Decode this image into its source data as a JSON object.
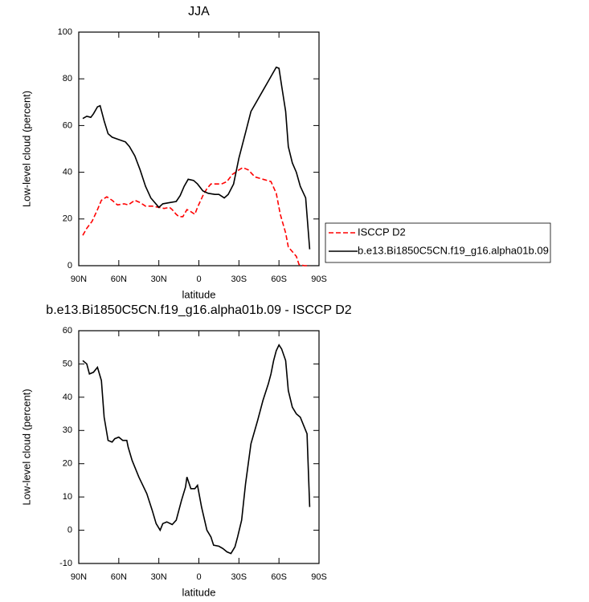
{
  "chart_data": [
    {
      "type": "line",
      "title": "JJA",
      "xlabel": "latitude",
      "ylabel": "Low-level cloud (percent)",
      "xlim": [
        90,
        -90
      ],
      "xticks": [
        {
          "value": 90,
          "label": "90N"
        },
        {
          "value": 60,
          "label": "60N"
        },
        {
          "value": 30,
          "label": "30N"
        },
        0,
        {
          "value": -30,
          "label": "30S"
        },
        {
          "value": -60,
          "label": "60S"
        },
        {
          "value": -90,
          "label": "90S"
        }
      ],
      "ylim": [
        0,
        100
      ],
      "yticks": [
        0,
        20,
        40,
        60,
        80,
        100
      ],
      "legend": "right",
      "series": [
        {
          "name": "ISCCP D2",
          "color": "#ff0000",
          "dash": true,
          "x": [
            87,
            84,
            80,
            76,
            73,
            69,
            65,
            61,
            56,
            53,
            48,
            44,
            40,
            35,
            30,
            26,
            22,
            20,
            17,
            15,
            12,
            9,
            7,
            3,
            1,
            -3,
            -6,
            -9,
            -17,
            -21,
            -25,
            -30,
            -33,
            -37,
            -42,
            -48,
            -54,
            -58,
            -61,
            -65,
            -67,
            -70,
            -73,
            -75,
            -79,
            -83
          ],
          "values": [
            13,
            16,
            19,
            24,
            28,
            29.5,
            28,
            26,
            26.5,
            26,
            28,
            27,
            25.5,
            25.5,
            25,
            24.5,
            25,
            24,
            22,
            21,
            21,
            24,
            23.5,
            22,
            25,
            30,
            33,
            35,
            35,
            36,
            39,
            41,
            42,
            41,
            38,
            37,
            36,
            31,
            22,
            14,
            8,
            6,
            4,
            0.5,
            0,
            0
          ]
        },
        {
          "name": "b.e13.Bi1850C5CN.f19_g16.alpha01b.09",
          "color": "#000000",
          "dash": false,
          "x": [
            87,
            84,
            81,
            79,
            76,
            74,
            71,
            68,
            65,
            60,
            55,
            52,
            48,
            44,
            40,
            36,
            30,
            27,
            22,
            17,
            14,
            11,
            8,
            4,
            1,
            -3,
            -7,
            -12,
            -15,
            -19,
            -22,
            -26,
            -30,
            -35,
            -39,
            -44,
            -48,
            -52,
            -56,
            -58,
            -60,
            -62,
            -65,
            -67,
            -70,
            -73,
            -76,
            -80,
            -83
          ],
          "values": [
            63,
            64,
            63.5,
            65,
            68,
            68.5,
            62,
            56.5,
            55,
            54,
            53,
            51,
            47,
            41,
            34,
            29,
            25,
            26.5,
            27,
            27.5,
            30,
            34,
            37,
            36.5,
            35,
            32,
            31,
            30.5,
            30.5,
            29,
            30.5,
            35,
            46,
            57,
            66,
            71,
            75,
            79,
            83,
            85,
            84.5,
            77,
            66,
            51,
            44,
            40,
            34,
            29,
            7
          ]
        }
      ]
    },
    {
      "type": "line",
      "title": "b.e13.Bi1850C5CN.f19_g16.alpha01b.09 - ISCCP D2",
      "xlabel": "latitude",
      "ylabel": "Low-level cloud (percent)",
      "xlim": [
        90,
        -90
      ],
      "xticks": [
        {
          "value": 90,
          "label": "90N"
        },
        {
          "value": 60,
          "label": "60N"
        },
        {
          "value": 30,
          "label": "30N"
        },
        0,
        {
          "value": -30,
          "label": "30S"
        },
        {
          "value": -60,
          "label": "60S"
        },
        {
          "value": -90,
          "label": "90S"
        }
      ],
      "ylim": [
        -10,
        60
      ],
      "yticks": [
        -10,
        0,
        10,
        20,
        30,
        40,
        50,
        60
      ],
      "series": [
        {
          "color": "#000000",
          "dash": false,
          "x": [
            87,
            84,
            82,
            79,
            76,
            73,
            71,
            68,
            65,
            63,
            60,
            57,
            54,
            53,
            50,
            45,
            39,
            35,
            32,
            29,
            27,
            24,
            20,
            17,
            13,
            10,
            9,
            6,
            3,
            1,
            -2,
            -6,
            -9,
            -11,
            -15,
            -18,
            -21,
            -24,
            -27,
            -29,
            -32,
            -35,
            -39,
            -44,
            -48,
            -52,
            -54,
            -56,
            -58,
            -60,
            -62,
            -65,
            -67,
            -70,
            -73,
            -76,
            -79,
            -81,
            -83
          ],
          "values": [
            51,
            50,
            47,
            47.5,
            49,
            45,
            34,
            27,
            26.5,
            27.5,
            28,
            27,
            27,
            25,
            21,
            16,
            11,
            6,
            2,
            0,
            2,
            2.5,
            1.7,
            3,
            9,
            13,
            16,
            12.5,
            12.5,
            13.5,
            7,
            0,
            -2,
            -4.5,
            -4.8,
            -5.5,
            -6.5,
            -7,
            -5,
            -2,
            3,
            14,
            26,
            33,
            39,
            44,
            47,
            51,
            54,
            55.7,
            54.5,
            51,
            42,
            37,
            35,
            34,
            31,
            29,
            7
          ]
        }
      ]
    }
  ]
}
